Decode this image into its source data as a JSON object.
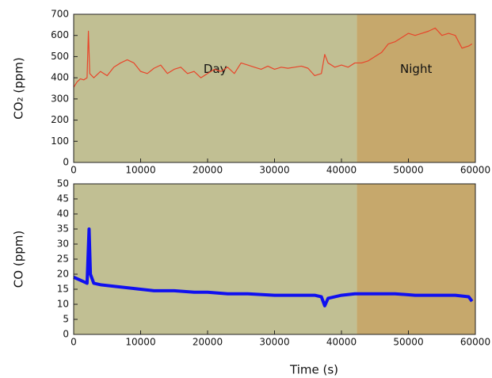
{
  "chart_data": [
    {
      "type": "line",
      "ylabel": "CO₂ (ppm)",
      "xlabel": "Time (s)",
      "xlim": [
        0,
        60000
      ],
      "xticks": [
        0,
        10000,
        20000,
        30000,
        40000,
        50000,
        60000
      ],
      "ylim": [
        0,
        700
      ],
      "yticks": [
        0,
        100,
        200,
        300,
        400,
        500,
        600,
        700
      ],
      "regions": [
        {
          "label": "Day",
          "start": 0,
          "end": 42300,
          "color": "#c1bf93"
        },
        {
          "label": "Night",
          "start": 42300,
          "end": 60000,
          "color": "#c6a86c"
        }
      ],
      "series": [
        {
          "color": "#e8452a",
          "x": [
            0,
            500,
            1000,
            1500,
            2000,
            2200,
            2400,
            3000,
            4000,
            5000,
            6000,
            7000,
            8000,
            9000,
            10000,
            11000,
            12000,
            13000,
            14000,
            15000,
            16000,
            17000,
            18000,
            19000,
            20000,
            21000,
            22000,
            23000,
            24000,
            25000,
            26000,
            27000,
            28000,
            29000,
            30000,
            31000,
            32000,
            33000,
            34000,
            35000,
            36000,
            37000,
            37500,
            38000,
            39000,
            40000,
            41000,
            42000,
            43000,
            44000,
            45000,
            46000,
            47000,
            48000,
            49000,
            50000,
            51000,
            52000,
            53000,
            54000,
            55000,
            56000,
            57000,
            58000,
            59000,
            59500
          ],
          "values": [
            355,
            380,
            395,
            390,
            400,
            620,
            420,
            400,
            430,
            410,
            450,
            470,
            485,
            470,
            430,
            420,
            445,
            460,
            420,
            440,
            450,
            420,
            430,
            400,
            420,
            440,
            430,
            450,
            420,
            470,
            460,
            450,
            440,
            455,
            440,
            450,
            445,
            450,
            455,
            445,
            410,
            420,
            510,
            470,
            450,
            460,
            450,
            470,
            470,
            480,
            500,
            520,
            560,
            570,
            590,
            610,
            600,
            610,
            620,
            635,
            600,
            610,
            600,
            540,
            550,
            560
          ]
        }
      ]
    },
    {
      "type": "line",
      "ylabel": "CO (ppm)",
      "xlabel": "Time (s)",
      "xlim": [
        0,
        60000
      ],
      "xticks": [
        0,
        10000,
        20000,
        30000,
        40000,
        50000,
        60000
      ],
      "ylim": [
        0,
        50
      ],
      "yticks": [
        0,
        5,
        10,
        15,
        20,
        25,
        30,
        35,
        40,
        45,
        50
      ],
      "regions": [
        {
          "start": 0,
          "end": 42300,
          "color": "#c1bf93"
        },
        {
          "start": 42300,
          "end": 60000,
          "color": "#c6a86c"
        }
      ],
      "series": [
        {
          "color": "#1010f0",
          "x": [
            0,
            1000,
            2000,
            2300,
            2500,
            3000,
            4000,
            6000,
            8000,
            10000,
            12000,
            15000,
            18000,
            20000,
            23000,
            26000,
            30000,
            33000,
            36000,
            37000,
            37500,
            38000,
            40000,
            42000,
            45000,
            48000,
            51000,
            54000,
            57000,
            59000,
            59500
          ],
          "values": [
            19,
            18,
            17,
            35,
            20,
            17,
            16.5,
            16,
            15.5,
            15,
            14.5,
            14.5,
            14,
            14,
            13.5,
            13.5,
            13,
            13,
            13,
            12.5,
            9.5,
            12,
            13,
            13.5,
            13.5,
            13.5,
            13,
            13,
            13,
            12.5,
            11
          ]
        }
      ]
    }
  ]
}
